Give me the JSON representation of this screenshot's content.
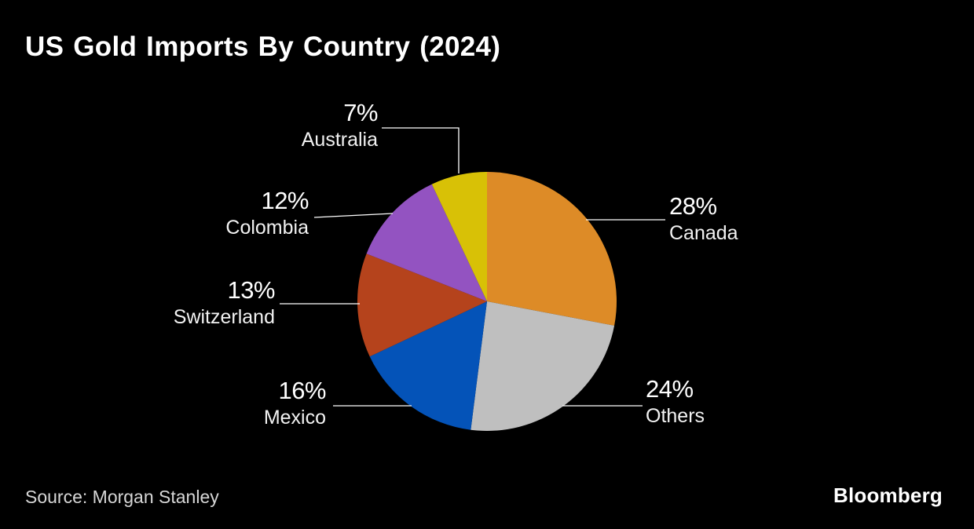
{
  "title": "US Gold Imports By Country (2024)",
  "source": "Source: Morgan Stanley",
  "brand": "Bloomberg",
  "colors": {
    "background": "#000000",
    "leader_line": "#ffffff",
    "title_text": "#ffffff",
    "label_text": "#ffffff",
    "source_text": "#d6d6d6"
  },
  "chart_data": {
    "type": "pie",
    "title": "US Gold Imports By Country (2024)",
    "unit": "%",
    "start_angle_deg": 0,
    "direction": "clockwise",
    "legend": "none",
    "labels": "outside-with-leader-lines",
    "slices": [
      {
        "label": "Canada",
        "value": 28,
        "display": "28%",
        "color": "#DD8B27"
      },
      {
        "label": "Others",
        "value": 24,
        "display": "24%",
        "color": "#BFBFBF"
      },
      {
        "label": "Mexico",
        "value": 16,
        "display": "16%",
        "color": "#0453B8"
      },
      {
        "label": "Switzerland",
        "value": 13,
        "display": "13%",
        "color": "#B5431C"
      },
      {
        "label": "Colombia",
        "value": 12,
        "display": "12%",
        "color": "#9353C1"
      },
      {
        "label": "Australia",
        "value": 7,
        "display": "7%",
        "color": "#D8C106"
      }
    ],
    "source": "Source: Morgan Stanley",
    "brand": "Bloomberg"
  }
}
